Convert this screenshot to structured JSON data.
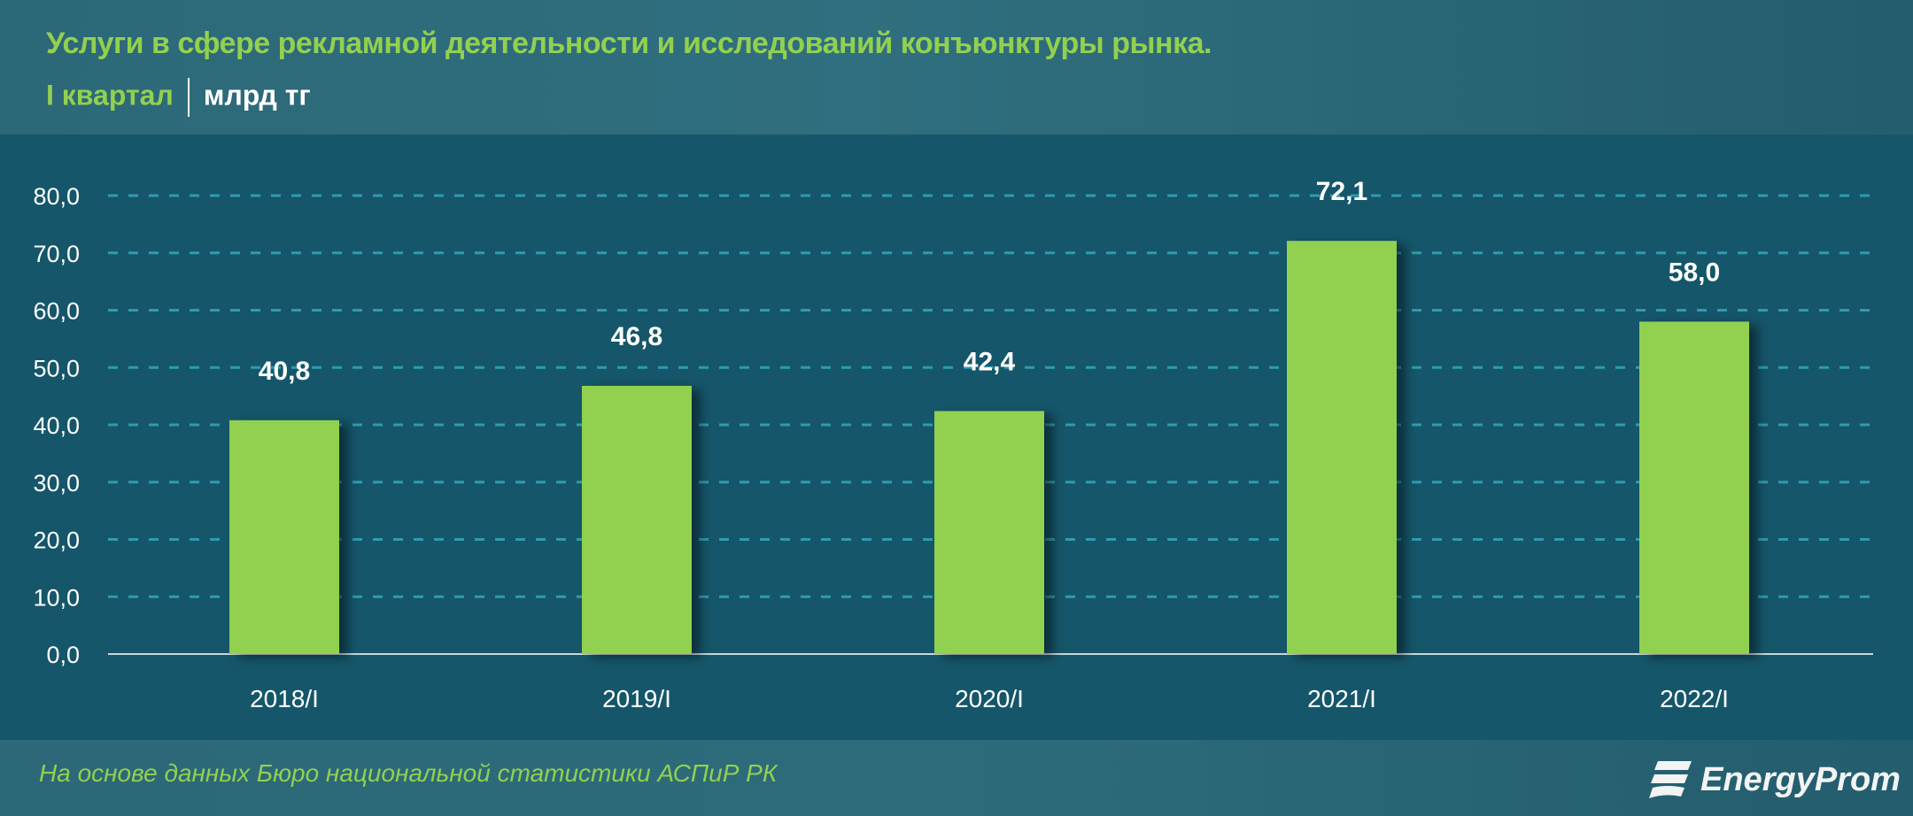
{
  "header": {
    "title": "Услуги в сфере рекламной деятельности и исследований конъюнктуры рынка.",
    "period": "I квартал",
    "unit": "млрд тг"
  },
  "footer": {
    "source": "На основе данных Бюро национальной статистики АСПиР РК",
    "logo": "EnergyProm"
  },
  "colors": {
    "bar": "#92d050",
    "grid": "#2e9bb0",
    "text": "#ffffff",
    "accent": "#92d050"
  },
  "chart_data": {
    "type": "bar",
    "title": "Услуги в сфере рекламной деятельности и исследований конъюнктуры рынка.",
    "xlabel": "",
    "ylabel": "млрд тг",
    "categories": [
      "2018/I",
      "2019/I",
      "2020/I",
      "2021/I",
      "2022/I"
    ],
    "values": [
      40.8,
      46.8,
      42.4,
      72.1,
      58.0
    ],
    "value_labels": [
      "40,8",
      "46,8",
      "42,4",
      "72,1",
      "58,0"
    ],
    "ylim": [
      0,
      80
    ],
    "yticks": [
      "0,0",
      "10,0",
      "20,0",
      "30,0",
      "40,0",
      "50,0",
      "60,0",
      "70,0",
      "80,0"
    ],
    "grid": true,
    "legend": "none"
  }
}
